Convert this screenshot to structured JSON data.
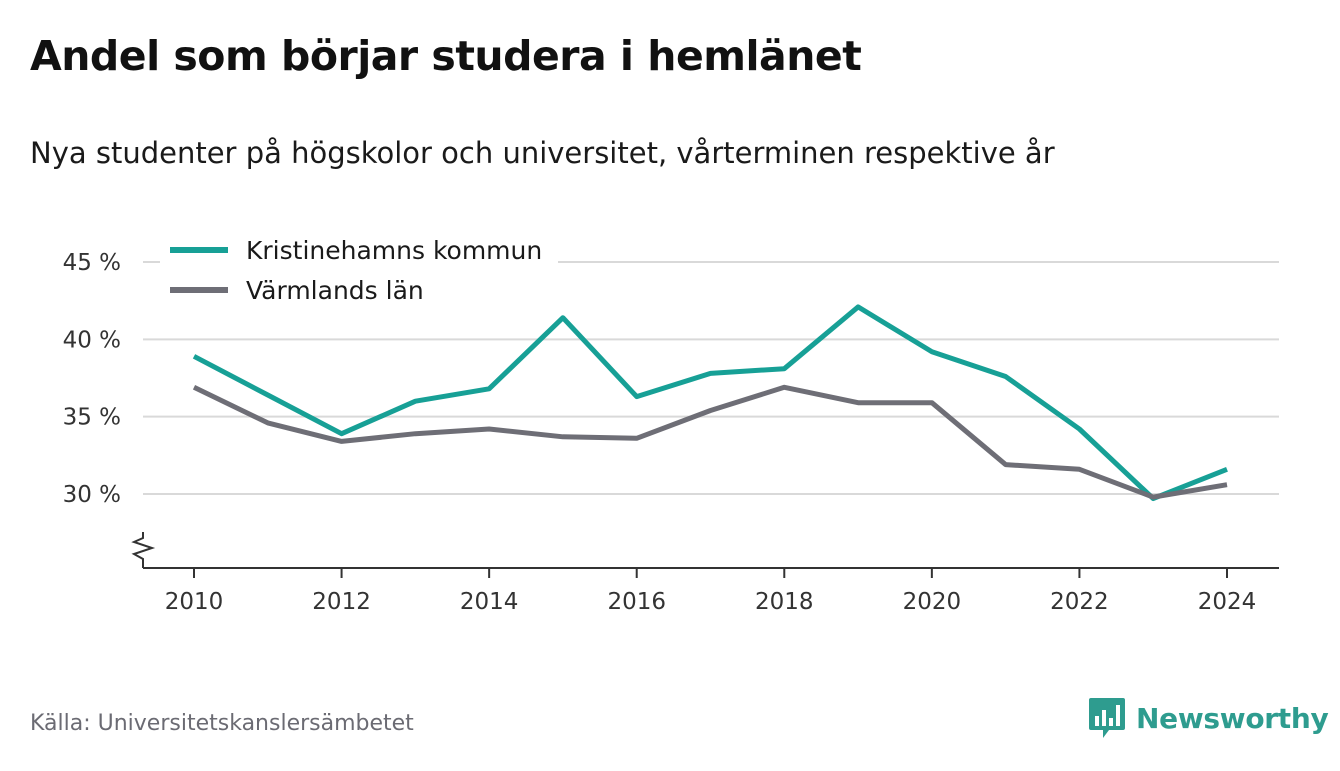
{
  "title": "Andel som börjar studera i hemlänet",
  "subtitle": "Nya studenter på högskolor och universitet, vårterminen respektive år",
  "source": "Källa: Universitetskanslersämbetet",
  "brand": {
    "name": "Newsworthy",
    "color": "#2e9c8f",
    "icon": "bar-chart-speech-bubble-icon"
  },
  "chart_data": {
    "type": "line",
    "title": "",
    "xlabel": "",
    "ylabel": "",
    "x": [
      2010,
      2011,
      2012,
      2013,
      2014,
      2015,
      2016,
      2017,
      2018,
      2019,
      2020,
      2021,
      2022,
      2023,
      2024
    ],
    "series": [
      {
        "name": "Kristinehamns kommun",
        "color": "#17a096",
        "values": [
          38.9,
          36.4,
          33.9,
          36.0,
          36.8,
          41.4,
          36.3,
          37.8,
          38.1,
          42.1,
          39.2,
          37.6,
          34.2,
          29.7,
          31.6
        ]
      },
      {
        "name": "Värmlands län",
        "color": "#6e6e76",
        "values": [
          36.9,
          34.6,
          33.4,
          33.9,
          34.2,
          33.7,
          33.6,
          35.4,
          36.9,
          35.9,
          35.9,
          31.9,
          31.6,
          29.8,
          30.6
        ]
      }
    ],
    "ylim": [
      25,
      45
    ],
    "yticks": [
      30,
      35,
      40,
      45
    ],
    "ytick_labels": [
      "30 %",
      "35 %",
      "40 %",
      "45 %"
    ],
    "xticks": [
      2010,
      2012,
      2014,
      2016,
      2018,
      2020,
      2022,
      2024
    ],
    "xtick_labels": [
      "2010",
      "2012",
      "2014",
      "2016",
      "2018",
      "2020",
      "2022",
      "2024"
    ],
    "grid": "horizontal",
    "axis_break": true,
    "legend_position": "top-left"
  }
}
